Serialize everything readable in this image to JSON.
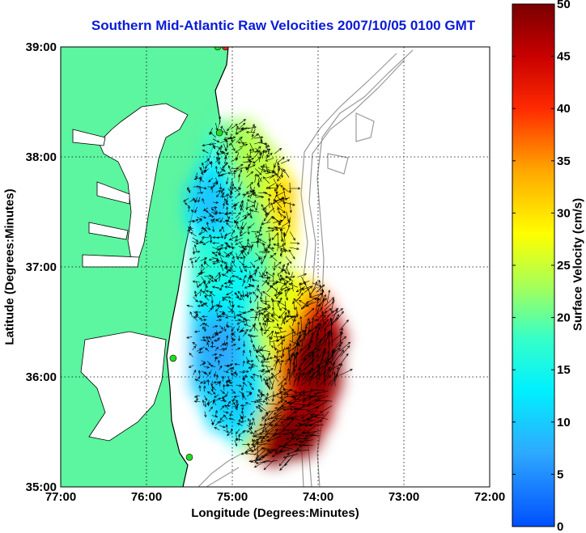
{
  "chart_data": {
    "type": "heatmap",
    "title": "Southern Mid-Atlantic Raw Velocities 2007/10/05 0100 GMT",
    "xlabel": "Longitude (Degrees:Minutes)",
    "ylabel": "Latitude (Degrees:Minutes)",
    "colorbar_label": "Surface Velocity (cm/s)",
    "x_ticks": [
      "77:00",
      "76:00",
      "75:00",
      "74:00",
      "73:00",
      "72:00"
    ],
    "y_ticks": [
      "39:00",
      "38:00",
      "37:00",
      "36:00",
      "35:00"
    ],
    "colorbar_ticks": [
      "50",
      "45",
      "40",
      "35",
      "30",
      "25",
      "20",
      "15",
      "10",
      "5",
      "0"
    ],
    "xlim": [
      -77,
      -72
    ],
    "ylim": [
      35,
      39
    ],
    "clim": [
      0,
      50
    ],
    "grid": true,
    "colorbar_position": "right",
    "colors": {
      "title": "#0a1ad6",
      "land": "#5cf5a0",
      "bathymetry_contour": "#9a9a9a",
      "vectors": "#000000",
      "station_green": "#22dd22",
      "station_red": "#ee2222"
    },
    "velocity_regions": [
      {
        "lon": -74.7,
        "lat": 37.9,
        "speed": 24
      },
      {
        "lon": -74.4,
        "lat": 37.6,
        "speed": 31
      },
      {
        "lon": -74.8,
        "lat": 37.4,
        "speed": 20
      },
      {
        "lon": -75.2,
        "lat": 37.5,
        "speed": 9
      },
      {
        "lon": -75.3,
        "lat": 37.1,
        "speed": 17
      },
      {
        "lon": -74.9,
        "lat": 36.8,
        "speed": 14
      },
      {
        "lon": -74.5,
        "lat": 36.6,
        "speed": 26
      },
      {
        "lon": -75.1,
        "lat": 36.3,
        "speed": 7
      },
      {
        "lon": -74.9,
        "lat": 35.8,
        "speed": 10
      },
      {
        "lon": -74.1,
        "lat": 36.2,
        "speed": 50
      },
      {
        "lon": -74.4,
        "lat": 35.4,
        "speed": 50
      }
    ],
    "stations": [
      {
        "lon": -75.08,
        "lat": 39.0,
        "color": "red"
      },
      {
        "lon": -75.17,
        "lat": 39.0,
        "color": "green"
      },
      {
        "lon": -75.15,
        "lat": 38.22,
        "color": "green"
      },
      {
        "lon": -75.69,
        "lat": 36.17,
        "color": "green"
      },
      {
        "lon": -75.5,
        "lat": 35.27,
        "color": "green"
      }
    ]
  }
}
